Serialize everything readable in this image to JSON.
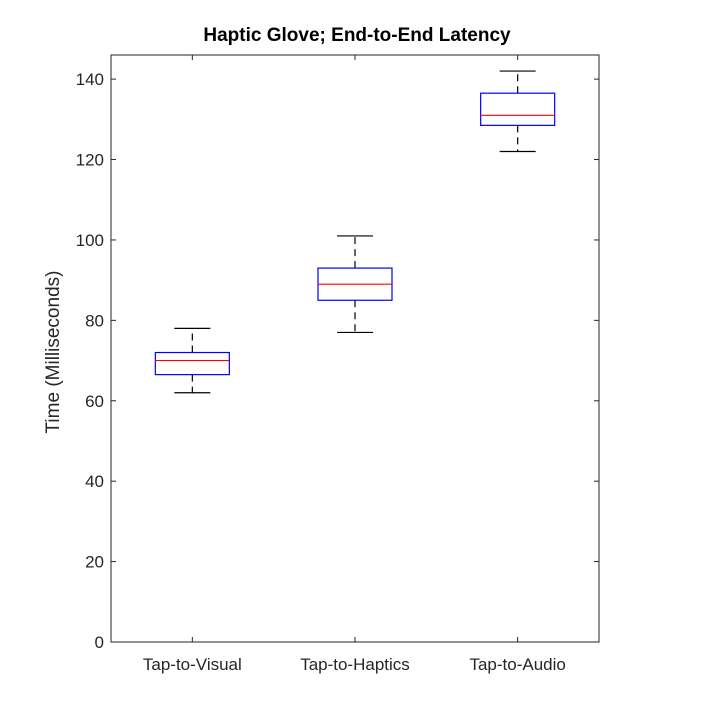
{
  "chart_data": {
    "type": "box",
    "title": "Haptic Glove; End-to-End Latency",
    "xlabel": "",
    "ylabel": "Time (Milliseconds)",
    "ylim": [
      0,
      146
    ],
    "yticks": [
      0,
      20,
      40,
      60,
      80,
      100,
      120,
      140
    ],
    "ytick_labels": [
      "0",
      "20",
      "40",
      "60",
      "80",
      "100",
      "120",
      "140"
    ],
    "grid": false,
    "categories": [
      "Tap-to-Visual",
      "Tap-to-Haptics",
      "Tap-to-Audio"
    ],
    "boxes": [
      {
        "category": "Tap-to-Visual",
        "min": 62,
        "q1": 66.5,
        "median": 70,
        "q3": 72,
        "max": 78
      },
      {
        "category": "Tap-to-Haptics",
        "min": 77,
        "q1": 85,
        "median": 89,
        "q3": 93,
        "max": 101
      },
      {
        "category": "Tap-to-Audio",
        "min": 122,
        "q1": 128.5,
        "median": 131,
        "q3": 136.5,
        "max": 142
      }
    ],
    "colors": {
      "box": "#0000ff",
      "median": "#ff0000",
      "whisker": "#000000",
      "axis": "#262626"
    }
  }
}
